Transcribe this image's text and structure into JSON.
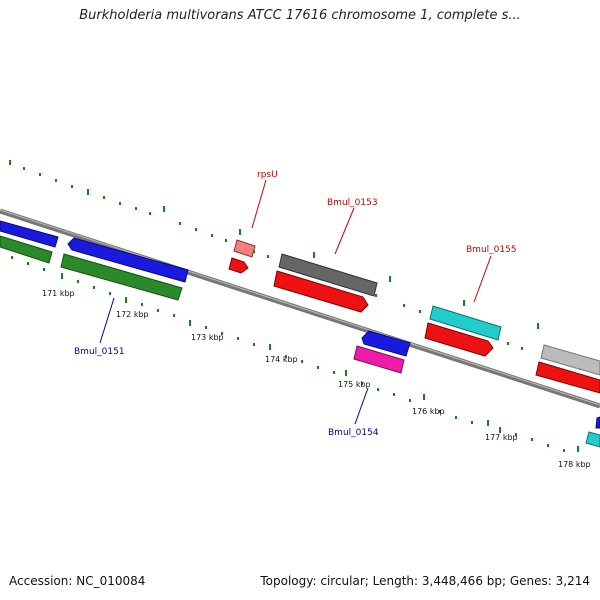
{
  "title": "Burkholderia multivorans ATCC 17616 chromosome 1, complete s...",
  "footer": {
    "accession": "Accession: NC_010084",
    "summary": "Topology: circular; Length: 3,448,466 bp; Genes: 3,214"
  },
  "colors": {
    "backbone": "#888888",
    "tick": "#118811",
    "forward_label": "#cc0000",
    "reverse_label": "#000099"
  },
  "ticks": [
    "171 kbp",
    "172 kbp",
    "173 kbp",
    "174 kbp",
    "175 kbp",
    "176 kbp",
    "177 kbp",
    "178 kbp"
  ],
  "labels": {
    "rpsU": "rpsU",
    "bmul0153": "Bmul_0153",
    "bmul0155": "Bmul_0155",
    "bmul0151": "Bmul_0151",
    "bmul0154": "Bmul_0154"
  }
}
